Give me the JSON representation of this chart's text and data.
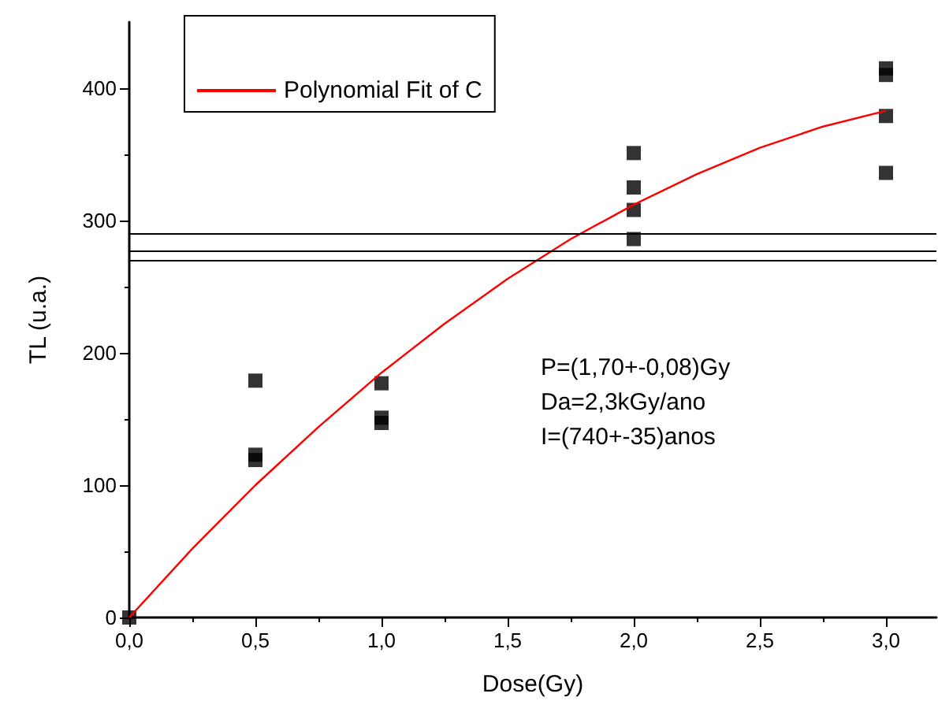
{
  "chart_data": {
    "type": "scatter",
    "xlabel": "Dose(Gy)",
    "ylabel": "TL (u.a.)",
    "xlim": [
      0,
      3.2
    ],
    "xticks": [
      {
        "value": 0,
        "label": "0,0"
      },
      {
        "value": 0.5,
        "label": "0,5"
      },
      {
        "value": 1,
        "label": "1,0"
      },
      {
        "value": 1.5,
        "label": "1,5"
      },
      {
        "value": 2,
        "label": "2,0"
      },
      {
        "value": 2.5,
        "label": "2,5"
      },
      {
        "value": 3,
        "label": "3,0"
      }
    ],
    "ylim": [
      0,
      450
    ],
    "yticks": [
      0,
      100,
      200,
      300,
      400
    ],
    "marker": "square",
    "grid": false,
    "legend": "top left",
    "series": [
      {
        "color": "#000000",
        "x": [
          0,
          0.5,
          0.5,
          0.5,
          1,
          1,
          1,
          2,
          2,
          2,
          2,
          3,
          3,
          3,
          3
        ],
        "values": [
          0,
          179,
          123,
          119,
          177,
          151,
          147,
          351,
          325,
          308,
          286,
          415,
          410,
          379,
          336
        ]
      },
      {
        "type": "line",
        "name": "Polynomial Fit of C",
        "color": "#ff0000",
        "marker": "none",
        "x": [
          0,
          0.25,
          0.5,
          0.75,
          1,
          1.25,
          1.5,
          1.75,
          2,
          2.25,
          2.5,
          2.75,
          3
        ],
        "values": [
          0,
          52,
          100,
          144,
          185,
          222,
          256,
          286,
          312,
          335,
          355,
          371,
          383
        ]
      }
    ],
    "ref_lines": [
      {
        "axis": "y",
        "value": 290,
        "color": "#000000"
      },
      {
        "axis": "y",
        "value": 277,
        "color": "#000000"
      },
      {
        "axis": "y",
        "value": 270,
        "color": "#000000"
      }
    ],
    "annotations": [
      "P=(1,70+-0,08)Gy",
      "Da=2,3kGy/ano",
      "I=(740+-35)anos"
    ]
  }
}
